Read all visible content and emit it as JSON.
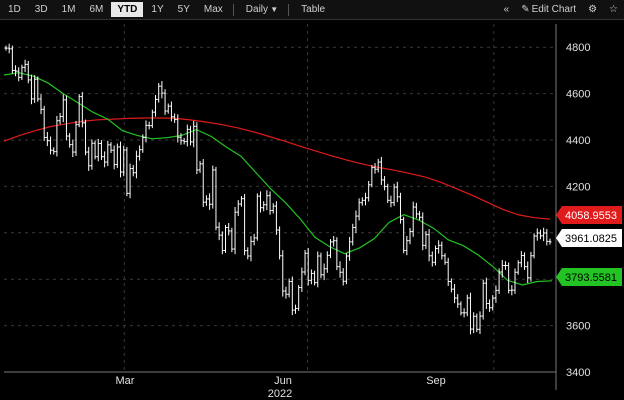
{
  "toolbar": {
    "periods": [
      {
        "label": "1D",
        "active": false
      },
      {
        "label": "3D",
        "active": false
      },
      {
        "label": "1M",
        "active": false
      },
      {
        "label": "6M",
        "active": false
      },
      {
        "label": "YTD",
        "active": true
      },
      {
        "label": "1Y",
        "active": false
      },
      {
        "label": "5Y",
        "active": false
      },
      {
        "label": "Max",
        "active": false
      }
    ],
    "interval": "Daily",
    "table_label": "Table",
    "edit_chart": "Edit Chart",
    "collapse_icon": "double-chevron-left-icon",
    "settings_icon": "gear-icon",
    "star_icon": "star-icon"
  },
  "chart_data": {
    "type": "line",
    "title": "",
    "xlabel": "",
    "ylabel": "",
    "ylim": [
      3400,
      4900
    ],
    "y_ticks": [
      3400,
      3600,
      3800,
      4000,
      4200,
      4400,
      4600,
      4800
    ],
    "x_month_labels": [
      "Mar",
      "Jun",
      "Sep"
    ],
    "x_year_label": "2022",
    "grid": true,
    "price_style": "ohlc-bars",
    "colors": {
      "price": "#ffffff",
      "ma_short": "#22c322",
      "ma_long": "#e01b1b",
      "grid": "#3a3a3a",
      "background": "#000000"
    },
    "series": [
      {
        "name": "Price",
        "values": [
          4796,
          4793,
          4700,
          4697,
          4670,
          4713,
          4726,
          4659,
          4577,
          4662,
          4577,
          4532,
          4411,
          4397,
          4356,
          4350,
          4483,
          4501,
          4573,
          4417,
          4380,
          4348,
          4466,
          4587,
          4474,
          4348,
          4289,
          4386,
          4328,
          4385,
          4328,
          4305,
          4379,
          4356,
          4294,
          4370,
          4262,
          4357,
          4170,
          4277,
          4259,
          4330,
          4358,
          4411,
          4463,
          4462,
          4520,
          4575,
          4632,
          4602,
          4525,
          4546,
          4500,
          4488,
          4412,
          4397,
          4393,
          4446,
          4392,
          4459,
          4271,
          4297,
          4132,
          4146,
          4123,
          4271,
          4024,
          3990,
          3924,
          4023,
          4008,
          3930,
          4089,
          4124,
          4147,
          3923,
          3900,
          3963,
          3978,
          4158,
          4108,
          4121,
          4160,
          4096,
          4115,
          4012,
          3901,
          3749,
          3735,
          3790,
          3667,
          3674,
          3764,
          3831,
          3912,
          3795,
          3825,
          3785,
          3900,
          3819,
          3845,
          3903,
          3961,
          3966,
          3854,
          3830,
          3791,
          3900,
          3961,
          4023,
          4072,
          4130,
          4140,
          4151,
          4207,
          4281,
          4274,
          4305,
          4228,
          4200,
          4140,
          4130,
          4197,
          4155,
          4057,
          3924,
          3966,
          4006,
          4111,
          4081,
          4067,
          3946,
          3992,
          3901,
          3873,
          3932,
          3946,
          3901,
          3873,
          3790,
          3757,
          3719,
          3693,
          3655,
          3655,
          3719,
          3585,
          3640,
          3584,
          3641,
          3783,
          3695,
          3677,
          3719,
          3752,
          3831,
          3859,
          3859,
          3752,
          3753,
          3830,
          3871,
          3902,
          3854,
          3806,
          3901,
          3986,
          3999,
          3987,
          3999,
          3963,
          3961
        ]
      },
      {
        "name": "Moving average (short)",
        "values": [
          4680,
          4690,
          4675,
          4645,
          4600,
          4560,
          4520,
          4490,
          4440,
          4420,
          4405,
          4410,
          4420,
          4445,
          4415,
          4370,
          4330,
          4260,
          4190,
          4130,
          4060,
          3980,
          3940,
          3910,
          3935,
          3975,
          4045,
          4078,
          4055,
          4020,
          3970,
          3945,
          3905,
          3855,
          3795,
          3775,
          3790,
          3793
        ]
      },
      {
        "name": "Moving average (long)",
        "values": [
          4395,
          4420,
          4440,
          4458,
          4470,
          4480,
          4487,
          4490,
          4493,
          4495,
          4495,
          4493,
          4486,
          4477,
          4466,
          4452,
          4435,
          4415,
          4395,
          4373,
          4352,
          4332,
          4313,
          4296,
          4282,
          4270,
          4256,
          4240,
          4218,
          4190,
          4162,
          4131,
          4100,
          4077,
          4065,
          4059
        ]
      }
    ],
    "price_tags": [
      {
        "series": "Moving average (long)",
        "value": "4058.9553",
        "color": "#e01b1b",
        "text_color": "#ffffff"
      },
      {
        "series": "Price",
        "value": "3961.0825",
        "color": "#ffffff",
        "text_color": "#000000"
      },
      {
        "series": "Moving average (short)",
        "value": "3793.5581",
        "color": "#22c322",
        "text_color": "#000000"
      }
    ]
  }
}
